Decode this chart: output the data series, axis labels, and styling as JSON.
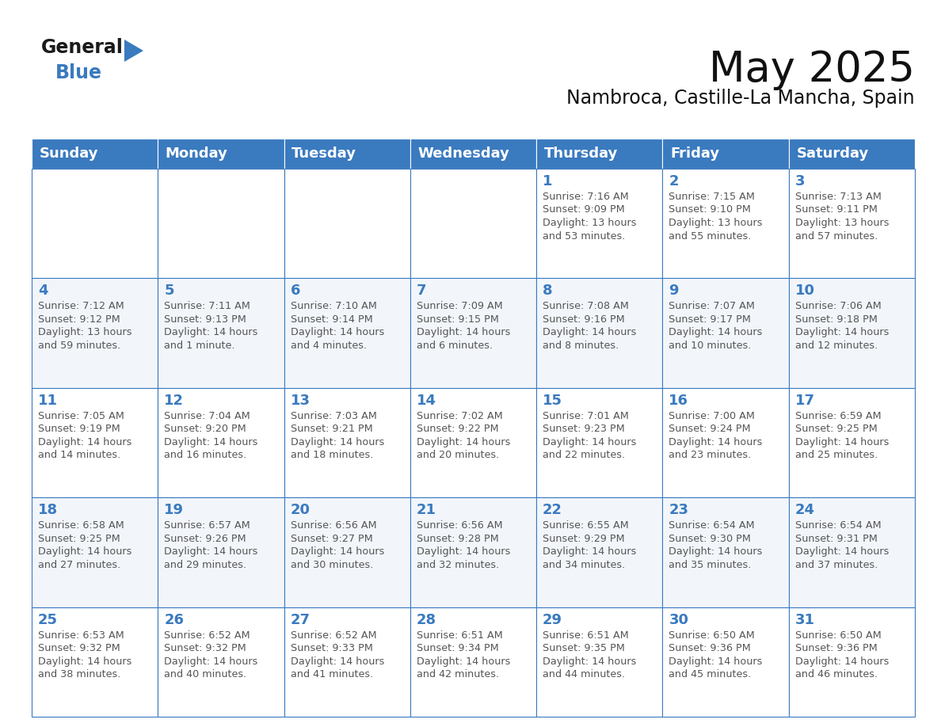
{
  "title": "May 2025",
  "subtitle": "Nambroca, Castille-La Mancha, Spain",
  "header_color": "#3a7abf",
  "header_text_color": "#ffffff",
  "cell_bg_color": "#ffffff",
  "cell_border_color": "#3a7abf",
  "day_number_color": "#3a7abf",
  "cell_text_color": "#555555",
  "alt_row_bg": "#f2f6fb",
  "days_of_week": [
    "Sunday",
    "Monday",
    "Tuesday",
    "Wednesday",
    "Thursday",
    "Friday",
    "Saturday"
  ],
  "calendar": [
    [
      null,
      null,
      null,
      null,
      {
        "day": 1,
        "sunrise": "7:16 AM",
        "sunset": "9:09 PM",
        "daylight_h": "13 hours",
        "daylight_m": "and 53 minutes."
      },
      {
        "day": 2,
        "sunrise": "7:15 AM",
        "sunset": "9:10 PM",
        "daylight_h": "13 hours",
        "daylight_m": "and 55 minutes."
      },
      {
        "day": 3,
        "sunrise": "7:13 AM",
        "sunset": "9:11 PM",
        "daylight_h": "13 hours",
        "daylight_m": "and 57 minutes."
      }
    ],
    [
      {
        "day": 4,
        "sunrise": "7:12 AM",
        "sunset": "9:12 PM",
        "daylight_h": "13 hours",
        "daylight_m": "and 59 minutes."
      },
      {
        "day": 5,
        "sunrise": "7:11 AM",
        "sunset": "9:13 PM",
        "daylight_h": "14 hours",
        "daylight_m": "and 1 minute."
      },
      {
        "day": 6,
        "sunrise": "7:10 AM",
        "sunset": "9:14 PM",
        "daylight_h": "14 hours",
        "daylight_m": "and 4 minutes."
      },
      {
        "day": 7,
        "sunrise": "7:09 AM",
        "sunset": "9:15 PM",
        "daylight_h": "14 hours",
        "daylight_m": "and 6 minutes."
      },
      {
        "day": 8,
        "sunrise": "7:08 AM",
        "sunset": "9:16 PM",
        "daylight_h": "14 hours",
        "daylight_m": "and 8 minutes."
      },
      {
        "day": 9,
        "sunrise": "7:07 AM",
        "sunset": "9:17 PM",
        "daylight_h": "14 hours",
        "daylight_m": "and 10 minutes."
      },
      {
        "day": 10,
        "sunrise": "7:06 AM",
        "sunset": "9:18 PM",
        "daylight_h": "14 hours",
        "daylight_m": "and 12 minutes."
      }
    ],
    [
      {
        "day": 11,
        "sunrise": "7:05 AM",
        "sunset": "9:19 PM",
        "daylight_h": "14 hours",
        "daylight_m": "and 14 minutes."
      },
      {
        "day": 12,
        "sunrise": "7:04 AM",
        "sunset": "9:20 PM",
        "daylight_h": "14 hours",
        "daylight_m": "and 16 minutes."
      },
      {
        "day": 13,
        "sunrise": "7:03 AM",
        "sunset": "9:21 PM",
        "daylight_h": "14 hours",
        "daylight_m": "and 18 minutes."
      },
      {
        "day": 14,
        "sunrise": "7:02 AM",
        "sunset": "9:22 PM",
        "daylight_h": "14 hours",
        "daylight_m": "and 20 minutes."
      },
      {
        "day": 15,
        "sunrise": "7:01 AM",
        "sunset": "9:23 PM",
        "daylight_h": "14 hours",
        "daylight_m": "and 22 minutes."
      },
      {
        "day": 16,
        "sunrise": "7:00 AM",
        "sunset": "9:24 PM",
        "daylight_h": "14 hours",
        "daylight_m": "and 23 minutes."
      },
      {
        "day": 17,
        "sunrise": "6:59 AM",
        "sunset": "9:25 PM",
        "daylight_h": "14 hours",
        "daylight_m": "and 25 minutes."
      }
    ],
    [
      {
        "day": 18,
        "sunrise": "6:58 AM",
        "sunset": "9:25 PM",
        "daylight_h": "14 hours",
        "daylight_m": "and 27 minutes."
      },
      {
        "day": 19,
        "sunrise": "6:57 AM",
        "sunset": "9:26 PM",
        "daylight_h": "14 hours",
        "daylight_m": "and 29 minutes."
      },
      {
        "day": 20,
        "sunrise": "6:56 AM",
        "sunset": "9:27 PM",
        "daylight_h": "14 hours",
        "daylight_m": "and 30 minutes."
      },
      {
        "day": 21,
        "sunrise": "6:56 AM",
        "sunset": "9:28 PM",
        "daylight_h": "14 hours",
        "daylight_m": "and 32 minutes."
      },
      {
        "day": 22,
        "sunrise": "6:55 AM",
        "sunset": "9:29 PM",
        "daylight_h": "14 hours",
        "daylight_m": "and 34 minutes."
      },
      {
        "day": 23,
        "sunrise": "6:54 AM",
        "sunset": "9:30 PM",
        "daylight_h": "14 hours",
        "daylight_m": "and 35 minutes."
      },
      {
        "day": 24,
        "sunrise": "6:54 AM",
        "sunset": "9:31 PM",
        "daylight_h": "14 hours",
        "daylight_m": "and 37 minutes."
      }
    ],
    [
      {
        "day": 25,
        "sunrise": "6:53 AM",
        "sunset": "9:32 PM",
        "daylight_h": "14 hours",
        "daylight_m": "and 38 minutes."
      },
      {
        "day": 26,
        "sunrise": "6:52 AM",
        "sunset": "9:32 PM",
        "daylight_h": "14 hours",
        "daylight_m": "and 40 minutes."
      },
      {
        "day": 27,
        "sunrise": "6:52 AM",
        "sunset": "9:33 PM",
        "daylight_h": "14 hours",
        "daylight_m": "and 41 minutes."
      },
      {
        "day": 28,
        "sunrise": "6:51 AM",
        "sunset": "9:34 PM",
        "daylight_h": "14 hours",
        "daylight_m": "and 42 minutes."
      },
      {
        "day": 29,
        "sunrise": "6:51 AM",
        "sunset": "9:35 PM",
        "daylight_h": "14 hours",
        "daylight_m": "and 44 minutes."
      },
      {
        "day": 30,
        "sunrise": "6:50 AM",
        "sunset": "9:36 PM",
        "daylight_h": "14 hours",
        "daylight_m": "and 45 minutes."
      },
      {
        "day": 31,
        "sunrise": "6:50 AM",
        "sunset": "9:36 PM",
        "daylight_h": "14 hours",
        "daylight_m": "and 46 minutes."
      }
    ]
  ]
}
